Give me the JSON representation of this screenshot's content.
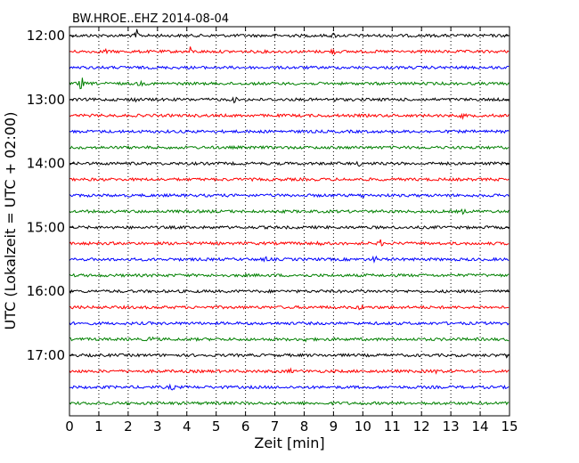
{
  "chart_data": {
    "type": "line",
    "title": "BW.HROE..EHZ 2014-08-04",
    "xlabel": "Zeit  [min]",
    "ylabel": "UTC (Lokalzeit = UTC + 02:00)",
    "xlim": [
      0,
      15
    ],
    "x_ticks": [
      0,
      1,
      2,
      3,
      4,
      5,
      6,
      7,
      8,
      9,
      10,
      11,
      12,
      13,
      14,
      15
    ],
    "x_tick_labels": [
      "0",
      "1",
      "2",
      "3",
      "4",
      "5",
      "6",
      "7",
      "8",
      "9",
      "10",
      "11",
      "12",
      "13",
      "14",
      "15"
    ],
    "y_tick_labels": [
      "12:00",
      "13:00",
      "14:00",
      "15:00",
      "16:00",
      "17:00"
    ],
    "grid": {
      "x": true,
      "y": false,
      "style": "dotted"
    },
    "trace_colors": [
      "#000000",
      "#ff0000",
      "#0000ff",
      "#008000"
    ],
    "traces": [
      {
        "start": "12:00",
        "events": [
          {
            "t": 2.3,
            "amp": 6
          },
          {
            "t": 9.0,
            "amp": 2
          }
        ]
      },
      {
        "start": "12:15",
        "events": [
          {
            "t": 1.2,
            "amp": 3
          },
          {
            "t": 4.1,
            "amp": 5
          },
          {
            "t": 9.0,
            "amp": 3
          }
        ]
      },
      {
        "start": "12:30",
        "events": []
      },
      {
        "start": "12:45",
        "events": [
          {
            "t": 0.4,
            "amp": 8
          },
          {
            "t": 2.4,
            "amp": 2
          }
        ]
      },
      {
        "start": "13:00",
        "events": [
          {
            "t": 2.2,
            "amp": 2
          },
          {
            "t": 5.6,
            "amp": 3
          },
          {
            "t": 9.0,
            "amp": 2
          }
        ]
      },
      {
        "start": "13:15",
        "events": [
          {
            "t": 13.4,
            "amp": 2
          }
        ]
      },
      {
        "start": "13:30",
        "events": []
      },
      {
        "start": "13:45",
        "events": []
      },
      {
        "start": "14:00",
        "events": [
          {
            "t": 9.9,
            "amp": 2
          }
        ]
      },
      {
        "start": "14:15",
        "events": []
      },
      {
        "start": "14:30",
        "events": [
          {
            "t": 10.0,
            "amp": 2
          }
        ]
      },
      {
        "start": "14:45",
        "events": [
          {
            "t": 13.4,
            "amp": 2
          }
        ]
      },
      {
        "start": "15:00",
        "events": []
      },
      {
        "start": "15:15",
        "events": [
          {
            "t": 8.5,
            "amp": 2
          },
          {
            "t": 10.6,
            "amp": 3
          }
        ]
      },
      {
        "start": "15:30",
        "events": [
          {
            "t": 6.7,
            "amp": 2
          },
          {
            "t": 10.4,
            "amp": 3
          }
        ]
      },
      {
        "start": "15:45",
        "events": []
      },
      {
        "start": "16:00",
        "events": [
          {
            "t": 10.0,
            "amp": 2
          }
        ]
      },
      {
        "start": "16:15",
        "events": [
          {
            "t": 9.9,
            "amp": 3
          }
        ]
      },
      {
        "start": "16:30",
        "events": []
      },
      {
        "start": "16:45",
        "events": [
          {
            "t": 2.8,
            "amp": 3
          },
          {
            "t": 8.0,
            "amp": 2
          }
        ]
      },
      {
        "start": "17:00",
        "events": [
          {
            "t": 14.9,
            "amp": 2
          }
        ]
      },
      {
        "start": "17:15",
        "events": [
          {
            "t": 7.5,
            "amp": 2
          },
          {
            "t": 12.5,
            "amp": 2
          }
        ]
      },
      {
        "start": "17:30",
        "events": [
          {
            "t": 3.5,
            "amp": 3
          }
        ]
      },
      {
        "start": "17:45",
        "events": []
      }
    ]
  }
}
